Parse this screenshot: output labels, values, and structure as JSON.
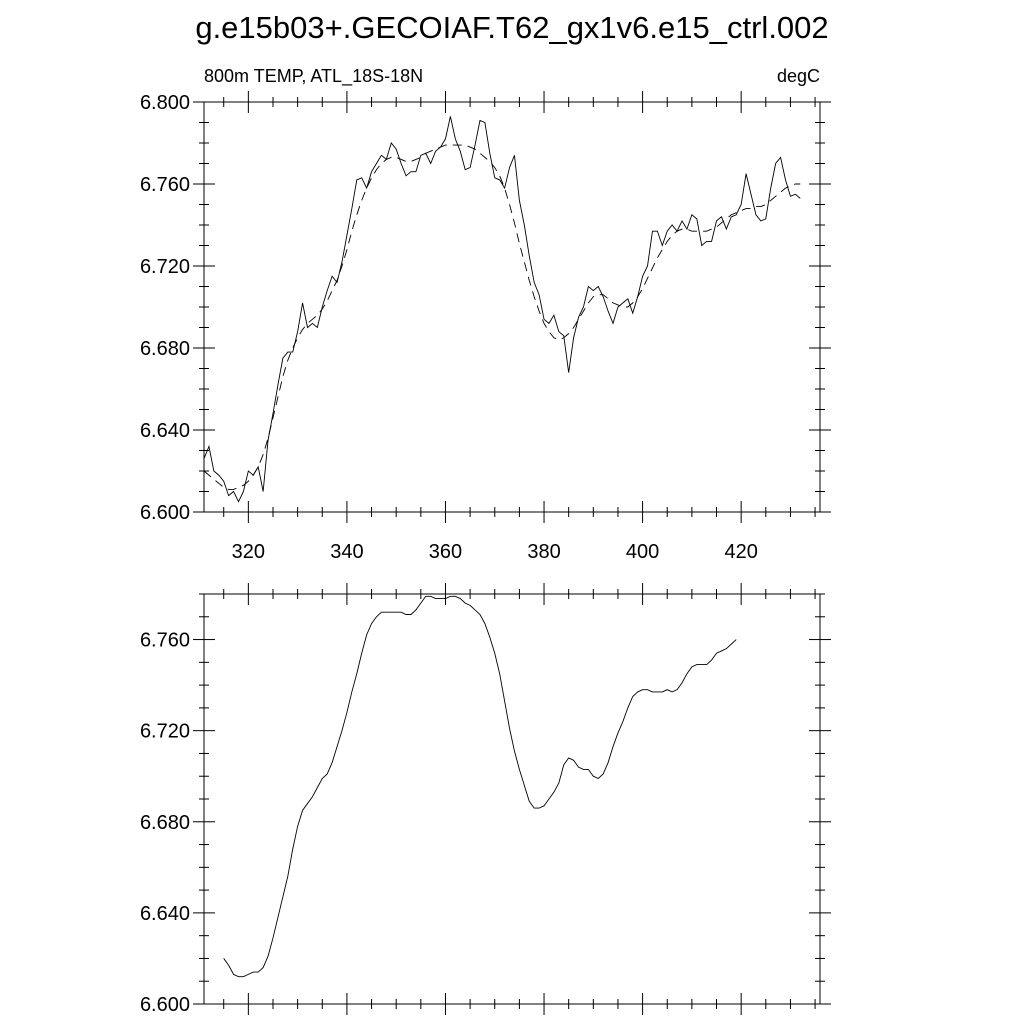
{
  "title": "g.e15b03+.GECOIAF.T62_gx1v6.e15_ctrl.002",
  "chart_data": [
    {
      "type": "line",
      "subtitle_left": "800m TEMP, ATL_18S-18N",
      "subtitle_right": "degC",
      "xlim": [
        311,
        436
      ],
      "ylim": [
        6.6,
        6.8
      ],
      "xticks": [
        "320",
        "340",
        "360",
        "380",
        "400",
        "420"
      ],
      "yticks": [
        "6.600",
        "6.640",
        "6.680",
        "6.720",
        "6.760",
        "6.800"
      ],
      "x_start": 311,
      "series": [
        {
          "style": "solid",
          "values": [
            6.626,
            6.632,
            6.62,
            6.618,
            6.615,
            6.608,
            6.61,
            6.605,
            6.61,
            6.62,
            6.618,
            6.622,
            6.61,
            6.635,
            6.648,
            6.662,
            6.675,
            6.678,
            6.678,
            6.688,
            6.702,
            6.69,
            6.692,
            6.69,
            6.7,
            6.708,
            6.715,
            6.712,
            6.722,
            6.735,
            6.748,
            6.762,
            6.763,
            6.758,
            6.766,
            6.77,
            6.774,
            6.772,
            6.78,
            6.777,
            6.77,
            6.764,
            6.766,
            6.766,
            6.774,
            6.775,
            6.77,
            6.776,
            6.778,
            6.782,
            6.793,
            6.782,
            6.776,
            6.767,
            6.768,
            6.779,
            6.791,
            6.79,
            6.775,
            6.763,
            6.762,
            6.758,
            6.768,
            6.774,
            6.752,
            6.74,
            6.725,
            6.712,
            6.706,
            6.694,
            6.692,
            6.696,
            6.688,
            6.686,
            6.668,
            6.685,
            6.695,
            6.7,
            6.71,
            6.708,
            6.71,
            6.705,
            6.698,
            6.692,
            6.7,
            6.702,
            6.704,
            6.697,
            6.705,
            6.715,
            6.72,
            6.737,
            6.737,
            6.73,
            6.737,
            6.74,
            6.737,
            6.742,
            6.738,
            6.745,
            6.743,
            6.73,
            6.732,
            6.732,
            6.742,
            6.744,
            6.738,
            6.744,
            6.745,
            6.75,
            6.765,
            6.755,
            6.745,
            6.742,
            6.743,
            6.758,
            6.77,
            6.773,
            6.762,
            6.754,
            6.755,
            6.753
          ]
        },
        {
          "style": "dashed",
          "values": [
            6.62,
            6.618,
            6.616,
            6.614,
            6.612,
            6.611,
            6.611,
            6.612,
            6.613,
            6.615,
            6.618,
            6.622,
            6.628,
            6.636,
            6.646,
            6.656,
            6.666,
            6.674,
            6.68,
            6.685,
            6.689,
            6.692,
            6.694,
            6.696,
            6.699,
            6.703,
            6.708,
            6.713,
            6.72,
            6.728,
            6.737,
            6.745,
            6.752,
            6.758,
            6.763,
            6.767,
            6.77,
            6.772,
            6.773,
            6.773,
            6.772,
            6.771,
            6.771,
            6.772,
            6.773,
            6.775,
            6.776,
            6.777,
            6.778,
            6.779,
            6.779,
            6.779,
            6.779,
            6.779,
            6.778,
            6.777,
            6.775,
            6.773,
            6.771,
            6.768,
            6.764,
            6.758,
            6.75,
            6.741,
            6.731,
            6.722,
            6.713,
            6.705,
            6.698,
            6.692,
            6.688,
            6.685,
            6.684,
            6.685,
            6.687,
            6.69,
            6.694,
            6.698,
            6.702,
            6.705,
            6.706,
            6.706,
            6.704,
            6.702,
            6.701,
            6.7,
            6.7,
            6.702,
            6.705,
            6.709,
            6.714,
            6.719,
            6.724,
            6.728,
            6.732,
            6.735,
            6.737,
            6.738,
            6.738,
            6.737,
            6.737,
            6.737,
            6.737,
            6.738,
            6.739,
            6.741,
            6.743,
            6.745,
            6.746,
            6.747,
            6.748,
            6.748,
            6.749,
            6.749,
            6.75,
            6.752,
            6.754,
            6.756,
            6.758,
            6.759,
            6.76,
            6.76
          ]
        }
      ]
    },
    {
      "type": "line",
      "xlim": [
        311,
        436
      ],
      "ylim": [
        6.6,
        6.78
      ],
      "yticks": [
        "6.600",
        "6.640",
        "6.680",
        "6.720",
        "6.760"
      ],
      "x_start": 315,
      "series": [
        {
          "style": "solid",
          "values": [
            6.62,
            6.617,
            6.613,
            6.612,
            6.612,
            6.613,
            6.614,
            6.614,
            6.616,
            6.621,
            6.629,
            6.638,
            6.647,
            6.656,
            6.668,
            6.678,
            6.685,
            6.688,
            6.691,
            6.695,
            6.699,
            6.701,
            6.706,
            6.713,
            6.72,
            6.728,
            6.737,
            6.745,
            6.754,
            6.762,
            6.767,
            6.77,
            6.772,
            6.772,
            6.772,
            6.772,
            6.772,
            6.771,
            6.771,
            6.773,
            6.776,
            6.779,
            6.779,
            6.778,
            6.778,
            6.778,
            6.779,
            6.779,
            6.778,
            6.776,
            6.775,
            6.773,
            6.771,
            6.767,
            6.761,
            6.754,
            6.745,
            6.733,
            6.721,
            6.711,
            6.703,
            6.696,
            6.689,
            6.686,
            6.686,
            6.687,
            6.69,
            6.693,
            6.697,
            6.705,
            6.708,
            6.707,
            6.704,
            6.703,
            6.703,
            6.7,
            6.699,
            6.701,
            6.706,
            6.713,
            6.719,
            6.724,
            6.73,
            6.735,
            6.737,
            6.738,
            6.738,
            6.737,
            6.737,
            6.737,
            6.738,
            6.737,
            6.738,
            6.741,
            6.745,
            6.748,
            6.749,
            6.749,
            6.749,
            6.751,
            6.754,
            6.755,
            6.756,
            6.758,
            6.76
          ]
        }
      ]
    }
  ]
}
